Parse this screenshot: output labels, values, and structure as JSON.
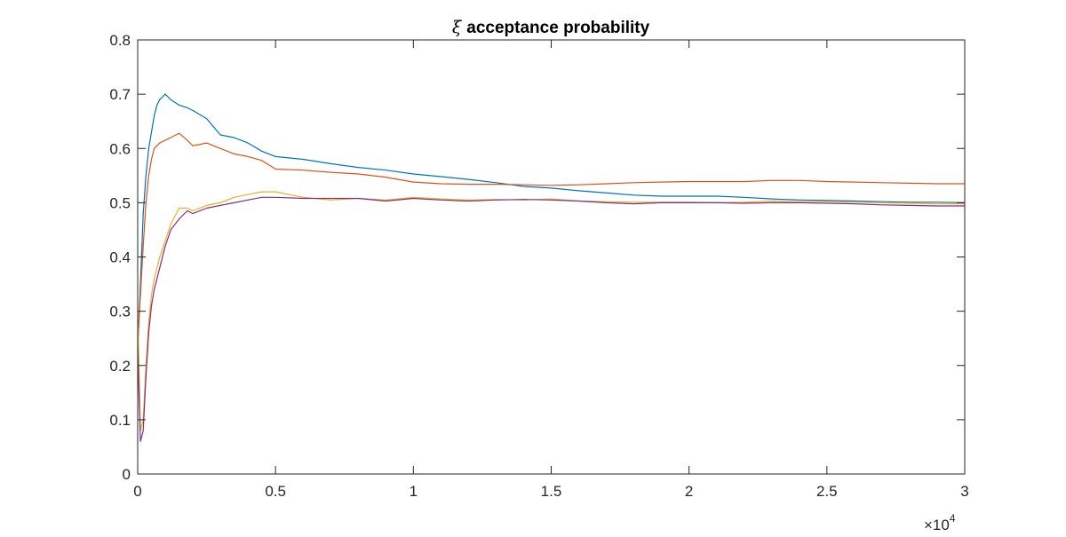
{
  "chart_data": {
    "type": "line",
    "title": "ξ acceptance probability",
    "title_symbol": "ξ",
    "title_rest": "acceptance probability",
    "xlabel": "",
    "ylabel": "",
    "xlim": [
      0,
      30000
    ],
    "ylim": [
      0,
      0.8
    ],
    "x_tick_values": [
      0,
      5000,
      10000,
      15000,
      20000,
      25000,
      30000
    ],
    "x_tick_labels": [
      "0",
      "0.5",
      "1",
      "1.5",
      "2",
      "2.5",
      "3"
    ],
    "y_tick_values": [
      0,
      0.1,
      0.2,
      0.3,
      0.4,
      0.5,
      0.6,
      0.7,
      0.8
    ],
    "y_tick_labels": [
      "0",
      "0.1",
      "0.2",
      "0.3",
      "0.4",
      "0.5",
      "0.6",
      "0.7",
      "0.8"
    ],
    "x_exponent_base": "×10",
    "x_exponent_power": "4",
    "grid": false,
    "box": true,
    "series": [
      {
        "color": "#0072BD",
        "x": [
          0,
          100,
          200,
          300,
          400,
          500,
          600,
          700,
          800,
          900,
          1000,
          1200,
          1500,
          1800,
          2000,
          2500,
          3000,
          3500,
          4000,
          4500,
          5000,
          6000,
          7000,
          8000,
          9000,
          10000,
          11000,
          12000,
          13000,
          14000,
          15000,
          16000,
          17000,
          18000,
          19000,
          20000,
          21000,
          22000,
          23000,
          24000,
          25000,
          26000,
          27000,
          28000,
          29000,
          30000
        ],
        "y": [
          0.23,
          0.35,
          0.48,
          0.55,
          0.6,
          0.63,
          0.66,
          0.68,
          0.69,
          0.695,
          0.7,
          0.69,
          0.68,
          0.675,
          0.67,
          0.655,
          0.625,
          0.62,
          0.61,
          0.595,
          0.585,
          0.58,
          0.572,
          0.565,
          0.56,
          0.553,
          0.548,
          0.543,
          0.537,
          0.53,
          0.527,
          0.522,
          0.518,
          0.514,
          0.512,
          0.512,
          0.512,
          0.51,
          0.507,
          0.505,
          0.504,
          0.503,
          0.502,
          0.501,
          0.501,
          0.5
        ]
      },
      {
        "color": "#D95319",
        "x": [
          0,
          100,
          200,
          300,
          400,
          500,
          600,
          800,
          1000,
          1200,
          1500,
          1800,
          2000,
          2500,
          3000,
          3500,
          4000,
          4500,
          5000,
          6000,
          7000,
          8000,
          9000,
          10000,
          11000,
          12000,
          13000,
          14000,
          15000,
          16000,
          17000,
          18000,
          19000,
          20000,
          21000,
          22000,
          23000,
          24000,
          25000,
          26000,
          27000,
          28000,
          29000,
          30000
        ],
        "y": [
          0.24,
          0.33,
          0.42,
          0.5,
          0.55,
          0.58,
          0.6,
          0.61,
          0.615,
          0.62,
          0.628,
          0.615,
          0.605,
          0.61,
          0.6,
          0.59,
          0.585,
          0.578,
          0.562,
          0.56,
          0.556,
          0.553,
          0.547,
          0.538,
          0.535,
          0.534,
          0.534,
          0.533,
          0.532,
          0.533,
          0.535,
          0.537,
          0.538,
          0.539,
          0.539,
          0.539,
          0.541,
          0.541,
          0.539,
          0.538,
          0.537,
          0.536,
          0.535,
          0.535
        ]
      },
      {
        "color": "#EDB120",
        "x": [
          0,
          100,
          200,
          300,
          400,
          500,
          600,
          800,
          1000,
          1200,
          1500,
          1800,
          2000,
          2500,
          3000,
          3500,
          4000,
          4500,
          5000,
          6000,
          7000,
          8000,
          9000,
          10000,
          11000,
          12000,
          13000,
          14000,
          15000,
          16000,
          17000,
          18000,
          19000,
          20000,
          21000,
          22000,
          23000,
          24000,
          25000,
          26000,
          27000,
          28000,
          29000,
          30000
        ],
        "y": [
          0.3,
          0.08,
          0.1,
          0.2,
          0.28,
          0.33,
          0.36,
          0.4,
          0.43,
          0.46,
          0.49,
          0.49,
          0.485,
          0.495,
          0.5,
          0.51,
          0.515,
          0.52,
          0.52,
          0.51,
          0.505,
          0.508,
          0.505,
          0.51,
          0.507,
          0.505,
          0.506,
          0.505,
          0.507,
          0.503,
          0.502,
          0.501,
          0.501,
          0.501,
          0.5,
          0.501,
          0.503,
          0.502,
          0.502,
          0.501,
          0.5,
          0.499,
          0.498,
          0.498
        ]
      },
      {
        "color": "#7E2F8E",
        "x": [
          0,
          100,
          200,
          300,
          400,
          500,
          600,
          800,
          1000,
          1200,
          1500,
          1800,
          2000,
          2500,
          3000,
          3500,
          4000,
          4500,
          5000,
          6000,
          7000,
          8000,
          9000,
          10000,
          11000,
          12000,
          13000,
          14000,
          15000,
          16000,
          17000,
          18000,
          19000,
          20000,
          21000,
          22000,
          23000,
          24000,
          25000,
          26000,
          27000,
          28000,
          29000,
          30000
        ],
        "y": [
          0.23,
          0.06,
          0.08,
          0.18,
          0.26,
          0.31,
          0.34,
          0.38,
          0.42,
          0.45,
          0.47,
          0.485,
          0.48,
          0.49,
          0.495,
          0.5,
          0.505,
          0.51,
          0.51,
          0.508,
          0.508,
          0.508,
          0.503,
          0.508,
          0.505,
          0.503,
          0.505,
          0.506,
          0.505,
          0.503,
          0.5,
          0.498,
          0.5,
          0.5,
          0.5,
          0.499,
          0.5,
          0.5,
          0.499,
          0.498,
          0.496,
          0.495,
          0.494,
          0.494
        ]
      }
    ]
  }
}
